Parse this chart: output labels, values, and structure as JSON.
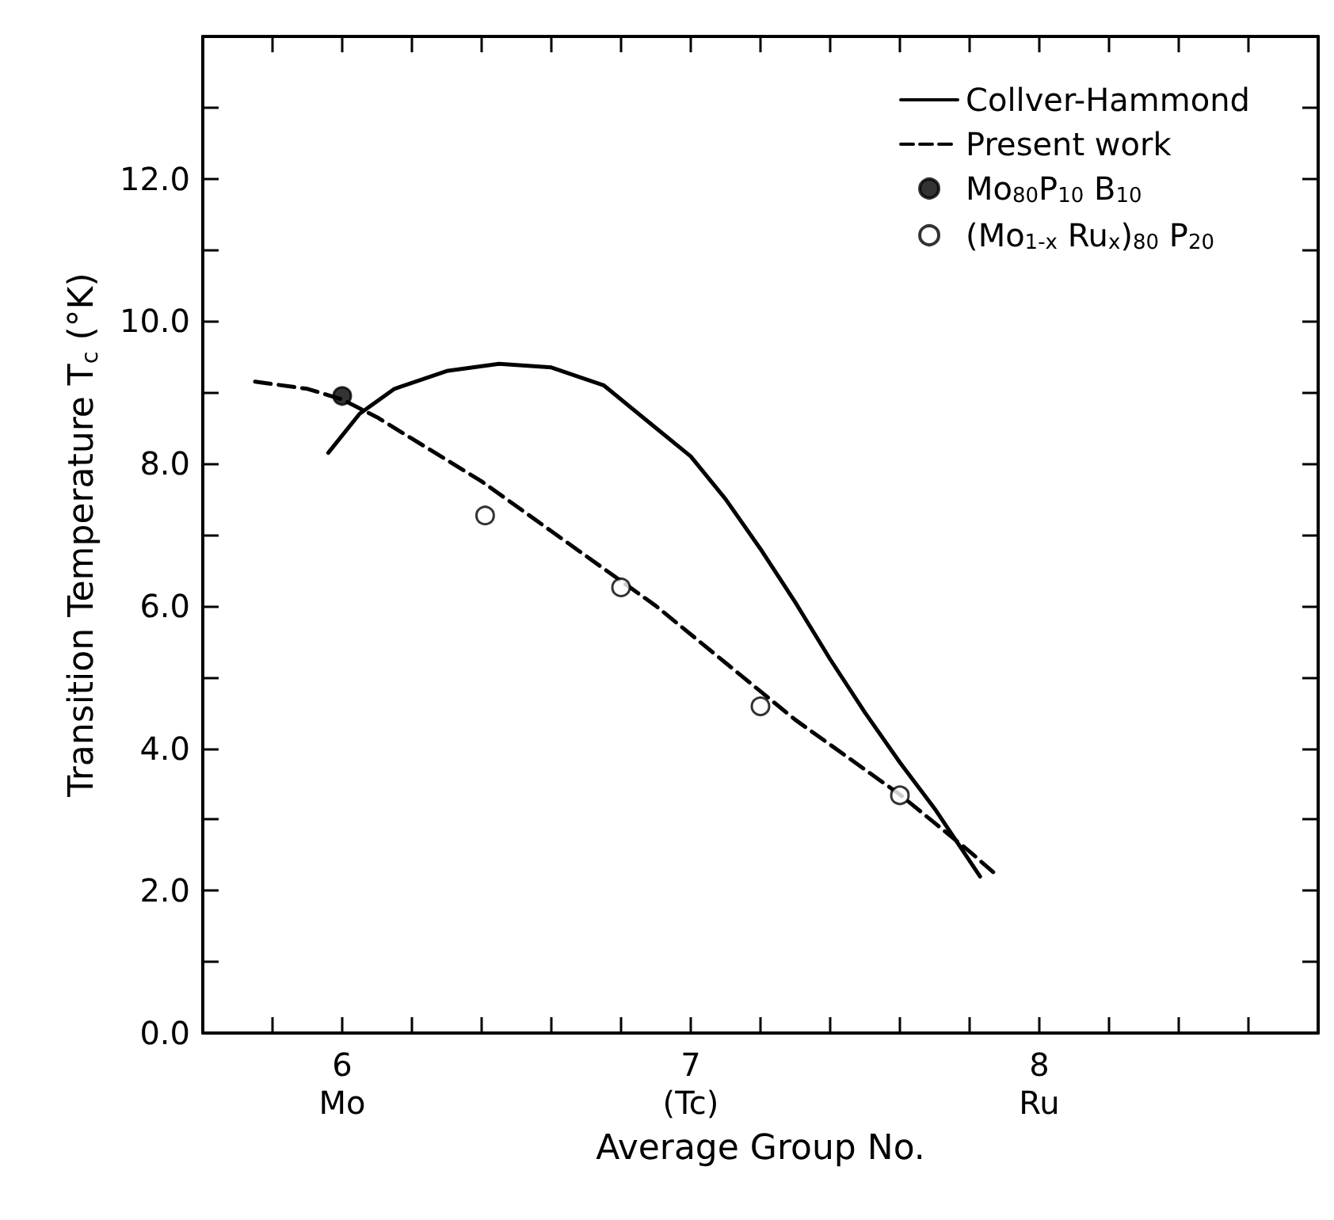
{
  "chart_data": {
    "type": "line",
    "xlabel": "Average Group No.",
    "ylabel": "Transition Temperature T$_{c}$ (°K)",
    "xlim": [
      5.6,
      8.8
    ],
    "ylim": [
      0,
      14
    ],
    "xticks": [
      {
        "value": 5.8,
        "label": null
      },
      {
        "value": 6,
        "label": "6\nMo"
      },
      {
        "value": 6.2,
        "label": null
      },
      {
        "value": 6.4,
        "label": null
      },
      {
        "value": 6.6,
        "label": null
      },
      {
        "value": 6.8,
        "label": null
      },
      {
        "value": 7,
        "label": "7\n(Tc)"
      },
      {
        "value": 7.2,
        "label": null
      },
      {
        "value": 7.4,
        "label": null
      },
      {
        "value": 7.6,
        "label": null
      },
      {
        "value": 7.8,
        "label": null
      },
      {
        "value": 8,
        "label": "8\nRu"
      },
      {
        "value": 8.2,
        "label": null
      },
      {
        "value": 8.4,
        "label": null
      },
      {
        "value": 8.6,
        "label": null
      }
    ],
    "yticks": [
      {
        "value": 0,
        "label": "0.0"
      },
      {
        "value": 1,
        "label": null
      },
      {
        "value": 2,
        "label": "2.0"
      },
      {
        "value": 3,
        "label": null
      },
      {
        "value": 4,
        "label": "4.0"
      },
      {
        "value": 5,
        "label": null
      },
      {
        "value": 6,
        "label": "6.0"
      },
      {
        "value": 7,
        "label": null
      },
      {
        "value": 8,
        "label": "8.0"
      },
      {
        "value": 9,
        "label": null
      },
      {
        "value": 10,
        "label": "10.0"
      },
      {
        "value": 11,
        "label": null
      },
      {
        "value": 12,
        "label": "12.0"
      },
      {
        "value": 13,
        "label": null
      }
    ],
    "grid": false,
    "legend": "top right",
    "series": [
      {
        "name": "Collver-Hammond",
        "line_style": "solid",
        "marker": "none",
        "color": "#000000",
        "x": [
          5.96,
          6.05,
          6.15,
          6.3,
          6.45,
          6.6,
          6.75,
          6.9,
          7.0,
          7.1,
          7.2,
          7.3,
          7.4,
          7.5,
          7.6,
          7.7,
          7.83
        ],
        "values": [
          8.15,
          8.7,
          9.05,
          9.3,
          9.4,
          9.35,
          9.1,
          8.5,
          8.1,
          7.5,
          6.8,
          6.05,
          5.25,
          4.5,
          3.8,
          3.15,
          2.2
        ]
      },
      {
        "name": "Present work",
        "line_style": "dashed",
        "marker": "none",
        "color": "#000000",
        "x": [
          5.75,
          5.9,
          6.0,
          6.1,
          6.2,
          6.3,
          6.4,
          6.5,
          6.6,
          6.7,
          6.8,
          6.9,
          7.0,
          7.1,
          7.2,
          7.3,
          7.4,
          7.5,
          7.6,
          7.7,
          7.8,
          7.87
        ],
        "values": [
          9.15,
          9.05,
          8.9,
          8.65,
          8.35,
          8.05,
          7.75,
          7.4,
          7.05,
          6.7,
          6.35,
          6.0,
          5.6,
          5.2,
          4.8,
          4.4,
          4.05,
          3.7,
          3.35,
          2.95,
          2.55,
          2.25
        ]
      },
      {
        "name": "Mo$_{80}$P$_{10}$ B$_{10}$",
        "type": "scatter",
        "marker": "circle",
        "color": "#000000",
        "x": [
          6.0
        ],
        "values": [
          8.95
        ]
      },
      {
        "name": "(Mo$_{1-x}$ Ru$_{x}$)$_{80}$ P$_{20}$",
        "type": "scatter",
        "marker": "circle",
        "color": "#ffffff",
        "x": [
          6.41,
          6.8,
          7.2,
          7.6
        ],
        "values": [
          7.27,
          6.26,
          4.59,
          3.34
        ]
      }
    ]
  }
}
